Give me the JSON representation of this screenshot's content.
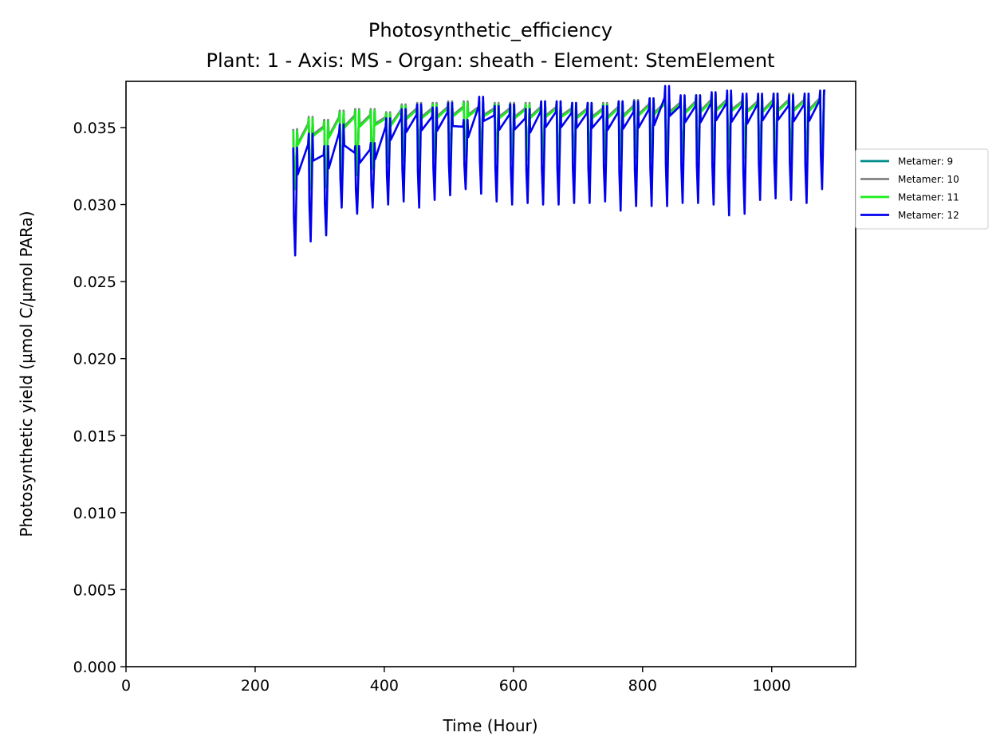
{
  "chart_data": {
    "type": "line",
    "title": "Photosynthetic_efficiency",
    "subtitle": "Plant: 1 - Axis: MS - Organ: sheath - Element: StemElement",
    "xlabel": "Time (Hour)",
    "ylabel": "Photosynthetic yield (µmol C/µmol PARa)",
    "xlim": [
      0,
      1130
    ],
    "ylim": [
      0,
      0.038
    ],
    "x_ticks": [
      "0",
      "200",
      "400",
      "600",
      "800",
      "1000"
    ],
    "y_ticks": [
      "0.000",
      "0.005",
      "0.010",
      "0.015",
      "0.020",
      "0.025",
      "0.030",
      "0.035"
    ],
    "grid": false,
    "legend_position": "right, outside axes",
    "cycle_period_hours": 24,
    "series": [
      {
        "name": "Metamer: 9",
        "color": "#008b8b",
        "days": [
          {
            "start": 259,
            "end": 265,
            "max": 0.0349,
            "min": 0.0311
          },
          {
            "start": 283,
            "end": 289,
            "max": 0.0356,
            "min": 0.0311
          },
          {
            "start": 307,
            "end": 313,
            "max": 0.0355,
            "min": 0.0312
          },
          {
            "start": 331,
            "end": 337,
            "max": 0.0361,
            "min": 0.032
          },
          {
            "start": 355,
            "end": 361,
            "max": 0.0362,
            "min": 0.032
          },
          {
            "start": 379,
            "end": 385,
            "max": 0.0362,
            "min": 0.0324
          },
          {
            "start": 403,
            "end": 409,
            "max": 0.036,
            "min": 0.0328
          },
          {
            "start": 427,
            "end": 433,
            "max": 0.0365,
            "min": 0.033
          },
          {
            "start": 451,
            "end": 457,
            "max": 0.0366,
            "min": 0.033
          },
          {
            "start": 475,
            "end": 481,
            "max": 0.0366,
            "min": 0.0331
          },
          {
            "start": 499,
            "end": 505,
            "max": 0.0367,
            "min": 0.0331
          },
          {
            "start": 523,
            "end": 529,
            "max": 0.0367,
            "min": 0.0332
          },
          {
            "start": 547,
            "end": 553,
            "max": 0.0367,
            "min": 0.0332
          },
          {
            "start": 571,
            "end": 577,
            "max": 0.0366,
            "min": 0.033
          },
          {
            "start": 595,
            "end": 601,
            "max": 0.0366,
            "min": 0.033
          },
          {
            "start": 619,
            "end": 625,
            "max": 0.0366,
            "min": 0.033
          },
          {
            "start": 643,
            "end": 649,
            "max": 0.0367,
            "min": 0.033
          },
          {
            "start": 667,
            "end": 673,
            "max": 0.0367,
            "min": 0.033
          },
          {
            "start": 691,
            "end": 697,
            "max": 0.0366,
            "min": 0.033
          },
          {
            "start": 715,
            "end": 721,
            "max": 0.0366,
            "min": 0.033
          },
          {
            "start": 739,
            "end": 745,
            "max": 0.0366,
            "min": 0.033
          },
          {
            "start": 763,
            "end": 769,
            "max": 0.0367,
            "min": 0.033
          },
          {
            "start": 787,
            "end": 793,
            "max": 0.0368,
            "min": 0.0331
          },
          {
            "start": 811,
            "end": 817,
            "max": 0.0369,
            "min": 0.0331
          },
          {
            "start": 835,
            "end": 841,
            "max": 0.037,
            "min": 0.0331
          },
          {
            "start": 859,
            "end": 865,
            "max": 0.037,
            "min": 0.0331
          },
          {
            "start": 883,
            "end": 889,
            "max": 0.0371,
            "min": 0.0331
          },
          {
            "start": 907,
            "end": 913,
            "max": 0.0372,
            "min": 0.0331
          },
          {
            "start": 931,
            "end": 937,
            "max": 0.0372,
            "min": 0.0331
          },
          {
            "start": 955,
            "end": 961,
            "max": 0.0371,
            "min": 0.0331
          },
          {
            "start": 979,
            "end": 985,
            "max": 0.0371,
            "min": 0.0331
          },
          {
            "start": 1003,
            "end": 1009,
            "max": 0.0372,
            "min": 0.0331
          },
          {
            "start": 1027,
            "end": 1033,
            "max": 0.0372,
            "min": 0.0331
          },
          {
            "start": 1051,
            "end": 1057,
            "max": 0.0372,
            "min": 0.0331
          },
          {
            "start": 1075,
            "end": 1081,
            "max": 0.0373,
            "min": 0.0332
          }
        ]
      },
      {
        "name": "Metamer: 10",
        "color": "#808080",
        "days": [
          {
            "start": 259,
            "end": 265,
            "max": 0.0349,
            "min": 0.0312
          },
          {
            "start": 283,
            "end": 289,
            "max": 0.0357,
            "min": 0.0312
          },
          {
            "start": 307,
            "end": 313,
            "max": 0.0355,
            "min": 0.0313
          },
          {
            "start": 331,
            "end": 337,
            "max": 0.0361,
            "min": 0.032
          },
          {
            "start": 355,
            "end": 361,
            "max": 0.0362,
            "min": 0.032
          },
          {
            "start": 379,
            "end": 385,
            "max": 0.0362,
            "min": 0.0324
          },
          {
            "start": 403,
            "end": 409,
            "max": 0.036,
            "min": 0.0328
          },
          {
            "start": 427,
            "end": 433,
            "max": 0.0365,
            "min": 0.033
          },
          {
            "start": 451,
            "end": 457,
            "max": 0.0366,
            "min": 0.033
          },
          {
            "start": 475,
            "end": 481,
            "max": 0.0366,
            "min": 0.0331
          },
          {
            "start": 499,
            "end": 505,
            "max": 0.0367,
            "min": 0.0331
          },
          {
            "start": 523,
            "end": 529,
            "max": 0.0367,
            "min": 0.0332
          },
          {
            "start": 547,
            "end": 553,
            "max": 0.0367,
            "min": 0.0332
          },
          {
            "start": 571,
            "end": 577,
            "max": 0.0366,
            "min": 0.033
          },
          {
            "start": 595,
            "end": 601,
            "max": 0.0366,
            "min": 0.033
          },
          {
            "start": 619,
            "end": 625,
            "max": 0.0366,
            "min": 0.033
          },
          {
            "start": 643,
            "end": 649,
            "max": 0.0367,
            "min": 0.033
          },
          {
            "start": 667,
            "end": 673,
            "max": 0.0367,
            "min": 0.033
          },
          {
            "start": 691,
            "end": 697,
            "max": 0.0366,
            "min": 0.033
          },
          {
            "start": 715,
            "end": 721,
            "max": 0.0366,
            "min": 0.033
          },
          {
            "start": 739,
            "end": 745,
            "max": 0.0366,
            "min": 0.033
          },
          {
            "start": 763,
            "end": 769,
            "max": 0.0367,
            "min": 0.033
          },
          {
            "start": 787,
            "end": 793,
            "max": 0.0368,
            "min": 0.0331
          },
          {
            "start": 811,
            "end": 817,
            "max": 0.0369,
            "min": 0.0331
          },
          {
            "start": 835,
            "end": 841,
            "max": 0.037,
            "min": 0.0331
          },
          {
            "start": 859,
            "end": 865,
            "max": 0.037,
            "min": 0.0331
          },
          {
            "start": 883,
            "end": 889,
            "max": 0.0371,
            "min": 0.0331
          },
          {
            "start": 907,
            "end": 913,
            "max": 0.0372,
            "min": 0.0331
          },
          {
            "start": 931,
            "end": 937,
            "max": 0.0372,
            "min": 0.0331
          },
          {
            "start": 955,
            "end": 961,
            "max": 0.0371,
            "min": 0.0331
          },
          {
            "start": 979,
            "end": 985,
            "max": 0.0371,
            "min": 0.0331
          },
          {
            "start": 1003,
            "end": 1009,
            "max": 0.0372,
            "min": 0.0331
          },
          {
            "start": 1027,
            "end": 1033,
            "max": 0.0372,
            "min": 0.0331
          },
          {
            "start": 1051,
            "end": 1057,
            "max": 0.0372,
            "min": 0.0331
          },
          {
            "start": 1075,
            "end": 1081,
            "max": 0.0373,
            "min": 0.0332
          }
        ]
      },
      {
        "name": "Metamer: 11",
        "color": "#1aee1a",
        "days": [
          {
            "start": 259,
            "end": 265,
            "max": 0.0348,
            "min": 0.031
          },
          {
            "start": 283,
            "end": 289,
            "max": 0.0356,
            "min": 0.031
          },
          {
            "start": 307,
            "end": 313,
            "max": 0.0354,
            "min": 0.0311
          },
          {
            "start": 331,
            "end": 337,
            "max": 0.036,
            "min": 0.0319
          },
          {
            "start": 355,
            "end": 361,
            "max": 0.0361,
            "min": 0.0319
          },
          {
            "start": 379,
            "end": 385,
            "max": 0.0361,
            "min": 0.0323
          },
          {
            "start": 403,
            "end": 409,
            "max": 0.0359,
            "min": 0.0327
          },
          {
            "start": 427,
            "end": 433,
            "max": 0.0364,
            "min": 0.0329
          },
          {
            "start": 451,
            "end": 457,
            "max": 0.0365,
            "min": 0.0329
          },
          {
            "start": 475,
            "end": 481,
            "max": 0.0365,
            "min": 0.033
          },
          {
            "start": 499,
            "end": 505,
            "max": 0.0366,
            "min": 0.033
          },
          {
            "start": 523,
            "end": 529,
            "max": 0.0366,
            "min": 0.0331
          },
          {
            "start": 547,
            "end": 553,
            "max": 0.0366,
            "min": 0.0331
          },
          {
            "start": 571,
            "end": 577,
            "max": 0.0365,
            "min": 0.0329
          },
          {
            "start": 595,
            "end": 601,
            "max": 0.0365,
            "min": 0.0329
          },
          {
            "start": 619,
            "end": 625,
            "max": 0.0365,
            "min": 0.0329
          },
          {
            "start": 643,
            "end": 649,
            "max": 0.0366,
            "min": 0.0329
          },
          {
            "start": 667,
            "end": 673,
            "max": 0.0366,
            "min": 0.0329
          },
          {
            "start": 691,
            "end": 697,
            "max": 0.0365,
            "min": 0.0329
          },
          {
            "start": 715,
            "end": 721,
            "max": 0.0365,
            "min": 0.0329
          },
          {
            "start": 739,
            "end": 745,
            "max": 0.0365,
            "min": 0.0329
          },
          {
            "start": 763,
            "end": 769,
            "max": 0.0366,
            "min": 0.0329
          },
          {
            "start": 787,
            "end": 793,
            "max": 0.0367,
            "min": 0.033
          },
          {
            "start": 811,
            "end": 817,
            "max": 0.0368,
            "min": 0.033
          },
          {
            "start": 835,
            "end": 841,
            "max": 0.0369,
            "min": 0.033
          },
          {
            "start": 859,
            "end": 865,
            "max": 0.0369,
            "min": 0.033
          },
          {
            "start": 883,
            "end": 889,
            "max": 0.037,
            "min": 0.033
          },
          {
            "start": 907,
            "end": 913,
            "max": 0.0371,
            "min": 0.033
          },
          {
            "start": 931,
            "end": 937,
            "max": 0.0371,
            "min": 0.033
          },
          {
            "start": 955,
            "end": 961,
            "max": 0.037,
            "min": 0.033
          },
          {
            "start": 979,
            "end": 985,
            "max": 0.037,
            "min": 0.033
          },
          {
            "start": 1003,
            "end": 1009,
            "max": 0.0371,
            "min": 0.033
          },
          {
            "start": 1027,
            "end": 1033,
            "max": 0.0371,
            "min": 0.033
          },
          {
            "start": 1051,
            "end": 1057,
            "max": 0.0371,
            "min": 0.033
          },
          {
            "start": 1075,
            "end": 1081,
            "max": 0.0372,
            "min": 0.0331
          }
        ]
      },
      {
        "name": "Metamer: 12",
        "color": "#0000ee",
        "days": [
          {
            "start": 259,
            "end": 265,
            "max": 0.0337,
            "min": 0.0267
          },
          {
            "start": 283,
            "end": 289,
            "max": 0.0346,
            "min": 0.0276
          },
          {
            "start": 307,
            "end": 313,
            "max": 0.0338,
            "min": 0.028
          },
          {
            "start": 331,
            "end": 337,
            "max": 0.0352,
            "min": 0.0298
          },
          {
            "start": 355,
            "end": 361,
            "max": 0.0338,
            "min": 0.0294
          },
          {
            "start": 379,
            "end": 385,
            "max": 0.034,
            "min": 0.0298
          },
          {
            "start": 403,
            "end": 409,
            "max": 0.0356,
            "min": 0.03
          },
          {
            "start": 427,
            "end": 433,
            "max": 0.0362,
            "min": 0.0302
          },
          {
            "start": 451,
            "end": 457,
            "max": 0.0365,
            "min": 0.0298
          },
          {
            "start": 475,
            "end": 481,
            "max": 0.0363,
            "min": 0.0303
          },
          {
            "start": 499,
            "end": 505,
            "max": 0.0366,
            "min": 0.0306
          },
          {
            "start": 523,
            "end": 529,
            "max": 0.0355,
            "min": 0.031
          },
          {
            "start": 547,
            "end": 553,
            "max": 0.037,
            "min": 0.0307
          },
          {
            "start": 571,
            "end": 577,
            "max": 0.0364,
            "min": 0.0302
          },
          {
            "start": 595,
            "end": 601,
            "max": 0.0365,
            "min": 0.03
          },
          {
            "start": 619,
            "end": 625,
            "max": 0.0362,
            "min": 0.0301
          },
          {
            "start": 643,
            "end": 649,
            "max": 0.0367,
            "min": 0.03
          },
          {
            "start": 667,
            "end": 673,
            "max": 0.0367,
            "min": 0.03
          },
          {
            "start": 691,
            "end": 697,
            "max": 0.0366,
            "min": 0.0301
          },
          {
            "start": 715,
            "end": 721,
            "max": 0.0366,
            "min": 0.0301
          },
          {
            "start": 739,
            "end": 745,
            "max": 0.0364,
            "min": 0.0302
          },
          {
            "start": 763,
            "end": 769,
            "max": 0.0367,
            "min": 0.0296
          },
          {
            "start": 787,
            "end": 793,
            "max": 0.0367,
            "min": 0.0299
          },
          {
            "start": 811,
            "end": 817,
            "max": 0.0369,
            "min": 0.0299
          },
          {
            "start": 835,
            "end": 841,
            "max": 0.0377,
            "min": 0.0299
          },
          {
            "start": 859,
            "end": 865,
            "max": 0.0371,
            "min": 0.0301
          },
          {
            "start": 883,
            "end": 889,
            "max": 0.0371,
            "min": 0.0301
          },
          {
            "start": 907,
            "end": 913,
            "max": 0.0373,
            "min": 0.03
          },
          {
            "start": 931,
            "end": 937,
            "max": 0.0374,
            "min": 0.0293
          },
          {
            "start": 955,
            "end": 961,
            "max": 0.0372,
            "min": 0.0294
          },
          {
            "start": 979,
            "end": 985,
            "max": 0.0372,
            "min": 0.0303
          },
          {
            "start": 1003,
            "end": 1009,
            "max": 0.0372,
            "min": 0.0304
          },
          {
            "start": 1027,
            "end": 1033,
            "max": 0.0371,
            "min": 0.0303
          },
          {
            "start": 1051,
            "end": 1057,
            "max": 0.0372,
            "min": 0.0301
          },
          {
            "start": 1075,
            "end": 1081,
            "max": 0.0374,
            "min": 0.031
          }
        ]
      }
    ]
  }
}
